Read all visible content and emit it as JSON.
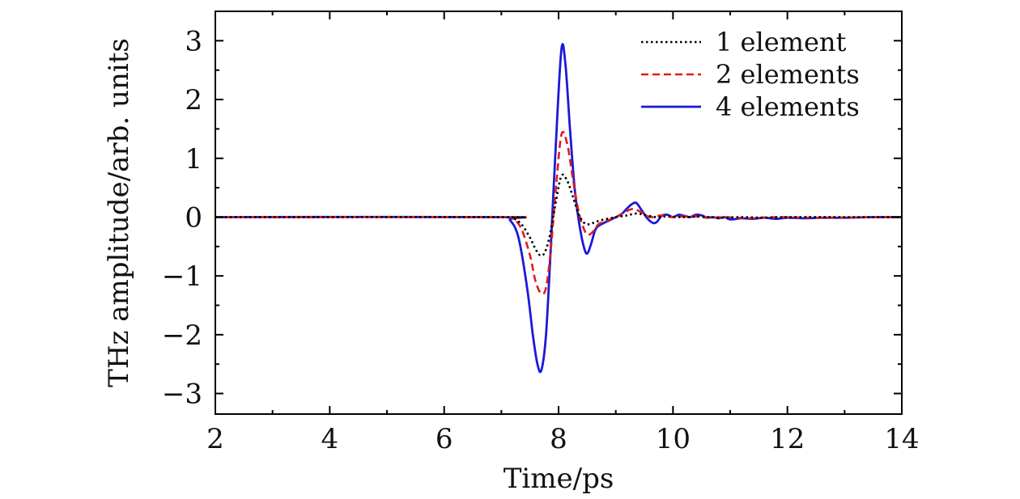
{
  "chart_data": {
    "type": "line",
    "title": "",
    "xlabel": "Time/ps",
    "ylabel": "THz amplitude/arb. units",
    "xlim": [
      2,
      14
    ],
    "ylim": [
      -3.35,
      3.5
    ],
    "xticks": [
      2,
      4,
      6,
      8,
      10,
      12,
      14
    ],
    "xtick_labels": [
      "2",
      "4",
      "6",
      "8",
      "10",
      "12",
      "14"
    ],
    "yticks": [
      -3,
      -2,
      -1,
      0,
      1,
      2,
      3
    ],
    "ytick_labels": [
      "−3",
      "−2",
      "−1",
      "0",
      "1",
      "2",
      "3"
    ],
    "grid": false,
    "legend_position": "top-right",
    "series": [
      {
        "name": "1 element",
        "color": "#000000",
        "dash": "dotted",
        "x": [
          2,
          7.0,
          7.2,
          7.35,
          7.5,
          7.6,
          7.68,
          7.76,
          7.85,
          7.95,
          8.05,
          8.15,
          8.25,
          8.35,
          8.45,
          8.55,
          8.65,
          8.8,
          9.0,
          9.2,
          9.35,
          9.5,
          9.7,
          9.9,
          10.2,
          10.5,
          10.8,
          11.2,
          11.6,
          12.0,
          13.0,
          14
        ],
        "y": [
          0,
          0,
          -0.02,
          -0.12,
          -0.35,
          -0.55,
          -0.65,
          -0.6,
          -0.3,
          0.25,
          0.7,
          0.62,
          0.35,
          0.05,
          -0.1,
          -0.12,
          -0.08,
          -0.04,
          0.0,
          0.03,
          0.06,
          0.04,
          0.0,
          0.01,
          0.0,
          0.01,
          -0.01,
          0.0,
          -0.01,
          0.0,
          0.0,
          0
        ]
      },
      {
        "name": "2 elements",
        "color": "#e01b1b",
        "dash": "dashed",
        "x": [
          2,
          7.0,
          7.2,
          7.35,
          7.5,
          7.6,
          7.7,
          7.78,
          7.86,
          7.95,
          8.05,
          8.15,
          8.25,
          8.35,
          8.45,
          8.52,
          8.6,
          8.7,
          8.85,
          9.0,
          9.15,
          9.3,
          9.45,
          9.6,
          9.8,
          10.0,
          10.3,
          10.6,
          10.9,
          11.3,
          11.8,
          12.5,
          13.5,
          14
        ],
        "y": [
          0,
          0,
          -0.03,
          -0.2,
          -0.65,
          -1.1,
          -1.3,
          -1.2,
          -0.6,
          0.45,
          1.4,
          1.25,
          0.65,
          0.1,
          -0.22,
          -0.3,
          -0.25,
          -0.12,
          -0.06,
          0.0,
          0.08,
          0.14,
          0.08,
          0.0,
          0.03,
          0.0,
          0.02,
          -0.01,
          0.0,
          -0.02,
          0.0,
          -0.01,
          0.0,
          0
        ]
      },
      {
        "name": "4 elements",
        "color": "#1a1ad6",
        "dash": "solid",
        "x": [
          2,
          7.0,
          7.15,
          7.3,
          7.45,
          7.55,
          7.63,
          7.7,
          7.78,
          7.86,
          7.95,
          8.05,
          8.12,
          8.2,
          8.28,
          8.36,
          8.44,
          8.5,
          8.57,
          8.65,
          8.75,
          8.9,
          9.0,
          9.1,
          9.2,
          9.28,
          9.36,
          9.45,
          9.55,
          9.65,
          9.72,
          9.8,
          9.9,
          10.0,
          10.1,
          10.2,
          10.3,
          10.4,
          10.5,
          10.6,
          10.7,
          10.8,
          10.9,
          11.0,
          11.2,
          11.4,
          11.6,
          11.8,
          12.0,
          12.3,
          12.6,
          13.0,
          13.5,
          14
        ],
        "y": [
          0,
          0,
          -0.05,
          -0.35,
          -1.2,
          -2.0,
          -2.5,
          -2.6,
          -2.0,
          -0.6,
          1.2,
          2.85,
          2.6,
          1.5,
          0.5,
          -0.1,
          -0.5,
          -0.62,
          -0.45,
          -0.2,
          -0.12,
          -0.05,
          0.0,
          0.05,
          0.15,
          0.22,
          0.24,
          0.12,
          -0.02,
          -0.1,
          -0.08,
          0.02,
          0.04,
          0.0,
          0.04,
          0.02,
          0.0,
          0.04,
          0.03,
          -0.01,
          0.0,
          -0.02,
          0.0,
          -0.04,
          -0.02,
          -0.03,
          -0.01,
          -0.03,
          -0.01,
          -0.02,
          -0.01,
          -0.01,
          0.0,
          0
        ]
      }
    ]
  }
}
